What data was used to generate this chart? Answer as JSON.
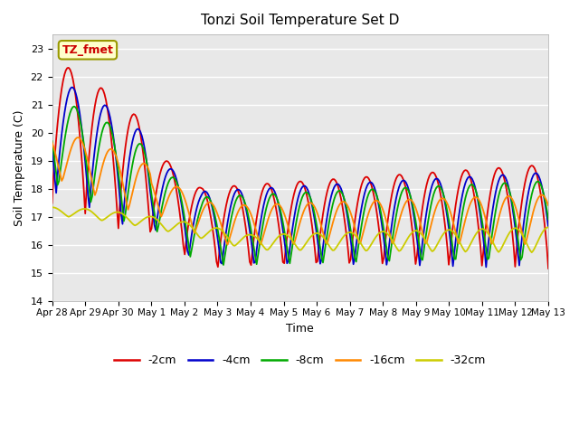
{
  "title": "Tonzi Soil Temperature Set D",
  "xlabel": "Time",
  "ylabel": "Soil Temperature (C)",
  "ylim": [
    14.0,
    23.5
  ],
  "yticks": [
    14.0,
    15.0,
    16.0,
    17.0,
    18.0,
    19.0,
    20.0,
    21.0,
    22.0,
    23.0
  ],
  "annotation_text": "TZ_fmet",
  "annotation_color": "#cc0000",
  "annotation_bg": "#ffffcc",
  "annotation_border": "#999900",
  "bg_color": "#e8e8e8",
  "line_colors": {
    "-2cm": "#dd0000",
    "-4cm": "#0000cc",
    "-8cm": "#00aa00",
    "-16cm": "#ff8800",
    "-32cm": "#cccc00"
  },
  "legend_labels": [
    "-2cm",
    "-4cm",
    "-8cm",
    "-16cm",
    "-32cm"
  ],
  "date_labels": [
    "Apr 28",
    "Apr 29",
    "Apr 30",
    "May 1",
    "May 2",
    "May 3",
    "May 4",
    "May 5",
    "May 6",
    "May 7",
    "May 8",
    "May 9",
    "May 10",
    "May 11",
    "May 12",
    "May 13"
  ]
}
